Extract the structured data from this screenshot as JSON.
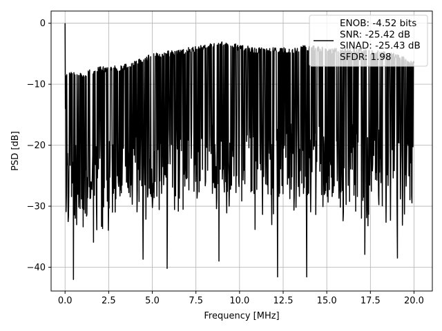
{
  "chart_data": {
    "type": "line",
    "xlabel": "Frequency [MHz]",
    "ylabel": "PSD [dB]",
    "xlim": [
      -0.8,
      21.05
    ],
    "ylim": [
      -43.9,
      2.0
    ],
    "xticks": [
      0.0,
      2.5,
      5.0,
      7.5,
      10.0,
      12.5,
      15.0,
      17.5,
      20.0
    ],
    "xtick_labels": [
      "0.0",
      "2.5",
      "5.0",
      "7.5",
      "10.0",
      "12.5",
      "15.0",
      "17.5",
      "20.0"
    ],
    "yticks": [
      0,
      -10,
      -20,
      -30,
      -40
    ],
    "ytick_labels": [
      "0",
      "−10",
      "−20",
      "−30",
      "−40"
    ],
    "grid": true,
    "legend_position": "top-right",
    "line_color": "#000000",
    "legend_lines": [
      "ENOB: -4.52 bits",
      "SNR: -25.42 dB",
      "SINAD: -25.43 dB",
      "SFDR: 1.98"
    ],
    "series": [
      {
        "x_range": [
          0.0,
          20.0
        ],
        "n_points": 1024,
        "peak": {
          "x": 0.0,
          "y": 0.0
        },
        "envelope_x": [
          0,
          1,
          2,
          3,
          4,
          5,
          6,
          7,
          8,
          9,
          10,
          11,
          12,
          13,
          14,
          15,
          16,
          17,
          18,
          19,
          20
        ],
        "envelope_top": [
          -8,
          -8,
          -7,
          -7,
          -6,
          -5,
          -4.5,
          -4,
          -3.5,
          -3,
          -3.5,
          -4,
          -4,
          -4,
          -3.5,
          -4,
          -4,
          -4,
          -4.5,
          -5,
          -6
        ],
        "envelope_mid": [
          -16,
          -16,
          -15,
          -15,
          -14,
          -13,
          -12.5,
          -12,
          -12,
          -12,
          -12,
          -12,
          -12.5,
          -12.5,
          -12.5,
          -12.5,
          -12.5,
          -12.5,
          -13,
          -13,
          -14
        ],
        "notable_minima": [
          {
            "x": 0.48,
            "y": -42.0
          },
          {
            "x": 1.63,
            "y": -35.9
          },
          {
            "x": 4.47,
            "y": -38.7
          },
          {
            "x": 5.85,
            "y": -40.2
          },
          {
            "x": 8.82,
            "y": -39.0
          },
          {
            "x": 12.18,
            "y": -41.6
          },
          {
            "x": 13.85,
            "y": -41.6
          },
          {
            "x": 17.18,
            "y": -37.9
          },
          {
            "x": 19.05,
            "y": -38.5
          }
        ]
      }
    ]
  }
}
